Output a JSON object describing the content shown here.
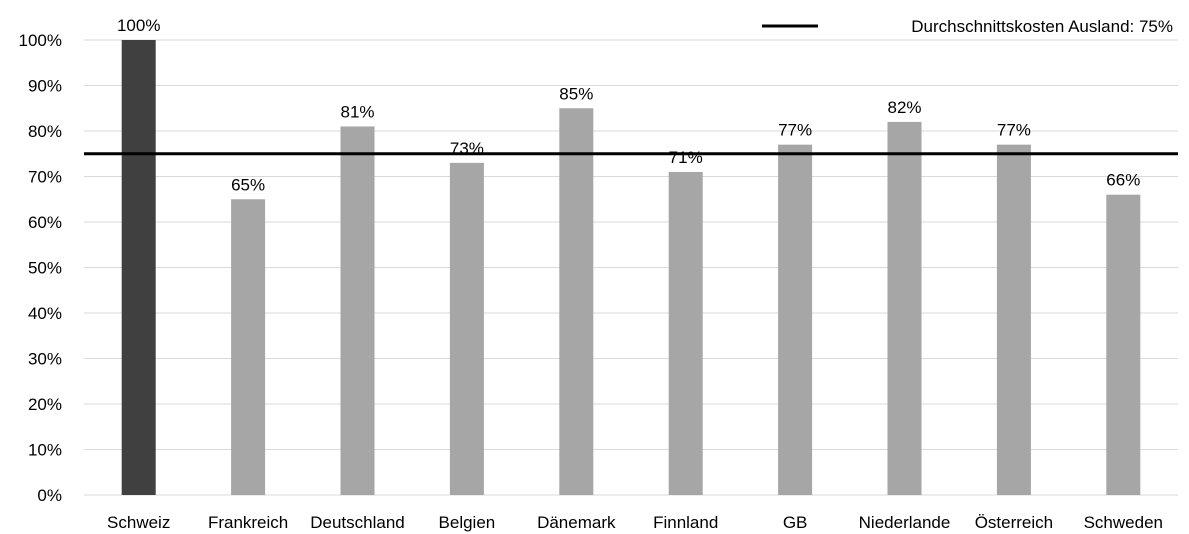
{
  "chart_data": {
    "type": "bar",
    "categories": [
      "Schweiz",
      "Frankreich",
      "Deutschland",
      "Belgien",
      "Dänemark",
      "Finnland",
      "GB",
      "Niederlande",
      "Österreich",
      "Schweden"
    ],
    "values": [
      100,
      65,
      81,
      73,
      85,
      71,
      77,
      82,
      77,
      66
    ],
    "data_labels": [
      "100%",
      "65%",
      "81%",
      "73%",
      "85%",
      "71%",
      "77%",
      "82%",
      "77%",
      "66%"
    ],
    "highlight_index": 0,
    "ylim": [
      0,
      100
    ],
    "y_ticks": [
      0,
      10,
      20,
      30,
      40,
      50,
      60,
      70,
      80,
      90,
      100
    ],
    "y_tick_labels": [
      "0%",
      "10%",
      "20%",
      "30%",
      "40%",
      "50%",
      "60%",
      "70%",
      "80%",
      "90%",
      "100%"
    ],
    "reference_line": {
      "value": 75,
      "label": "Durchschnittskosten Ausland: 75%"
    },
    "legend_position": "top-right",
    "grid": true,
    "colors": {
      "highlight_bar": "#404040",
      "bar": "#a6a6a6",
      "reference_line": "#000000",
      "grid": "#d9d9d9"
    }
  }
}
